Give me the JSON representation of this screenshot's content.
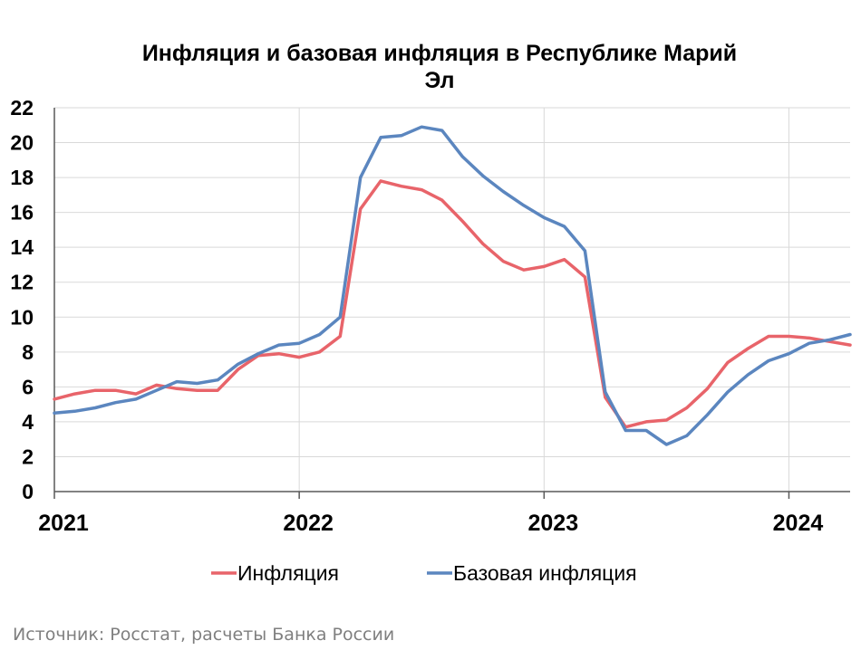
{
  "chart_data": {
    "type": "line",
    "title_line1": "Инфляция и базовая инфляция в Республике Марий",
    "title_line2": "Эл",
    "ylim": [
      0,
      22
    ],
    "yticks": [
      "0",
      "2",
      "4",
      "6",
      "8",
      "10",
      "12",
      "14",
      "16",
      "18",
      "20",
      "22"
    ],
    "xlim": [
      2021.0,
      2024.25
    ],
    "xticks": [
      {
        "value": 2021,
        "label": "2021"
      },
      {
        "value": 2022,
        "label": "2022"
      },
      {
        "value": 2023,
        "label": "2023"
      },
      {
        "value": 2024,
        "label": "2024"
      }
    ],
    "grid": true,
    "legend": "bottom",
    "x": [
      2021.0,
      2021.083,
      2021.167,
      2021.25,
      2021.333,
      2021.417,
      2021.5,
      2021.583,
      2021.667,
      2021.75,
      2021.833,
      2021.917,
      2022.0,
      2022.083,
      2022.167,
      2022.25,
      2022.333,
      2022.417,
      2022.5,
      2022.583,
      2022.667,
      2022.75,
      2022.833,
      2022.917,
      2023.0,
      2023.083,
      2023.167,
      2023.25,
      2023.333,
      2023.417,
      2023.5,
      2023.583,
      2023.667,
      2023.75,
      2023.833,
      2023.917,
      2024.0,
      2024.083,
      2024.167,
      2024.25
    ],
    "series": [
      {
        "name": "Инфляция",
        "color": "#e8646a",
        "values": [
          5.3,
          5.6,
          5.8,
          5.8,
          5.6,
          6.1,
          5.9,
          5.8,
          5.8,
          7.0,
          7.8,
          7.9,
          7.7,
          8.0,
          8.9,
          16.2,
          17.8,
          17.5,
          17.3,
          16.7,
          15.5,
          14.2,
          13.2,
          12.7,
          12.9,
          13.3,
          12.3,
          5.4,
          3.7,
          4.0,
          4.1,
          4.8,
          5.9,
          7.4,
          8.2,
          8.9,
          8.9,
          8.8,
          8.6,
          8.4
        ]
      },
      {
        "name": "Базовая инфляция",
        "color": "#5b86bf",
        "values": [
          4.5,
          4.6,
          4.8,
          5.1,
          5.3,
          5.8,
          6.3,
          6.2,
          6.4,
          7.3,
          7.9,
          8.4,
          8.5,
          9.0,
          10.0,
          18.0,
          20.3,
          20.4,
          20.9,
          20.7,
          19.2,
          18.1,
          17.2,
          16.4,
          15.7,
          15.2,
          13.8,
          5.7,
          3.5,
          3.5,
          2.7,
          3.2,
          4.4,
          5.7,
          6.7,
          7.5,
          7.9,
          8.5,
          8.7,
          9.0
        ]
      }
    ]
  },
  "source": "Источник: Росстат, расчеты Банка России"
}
